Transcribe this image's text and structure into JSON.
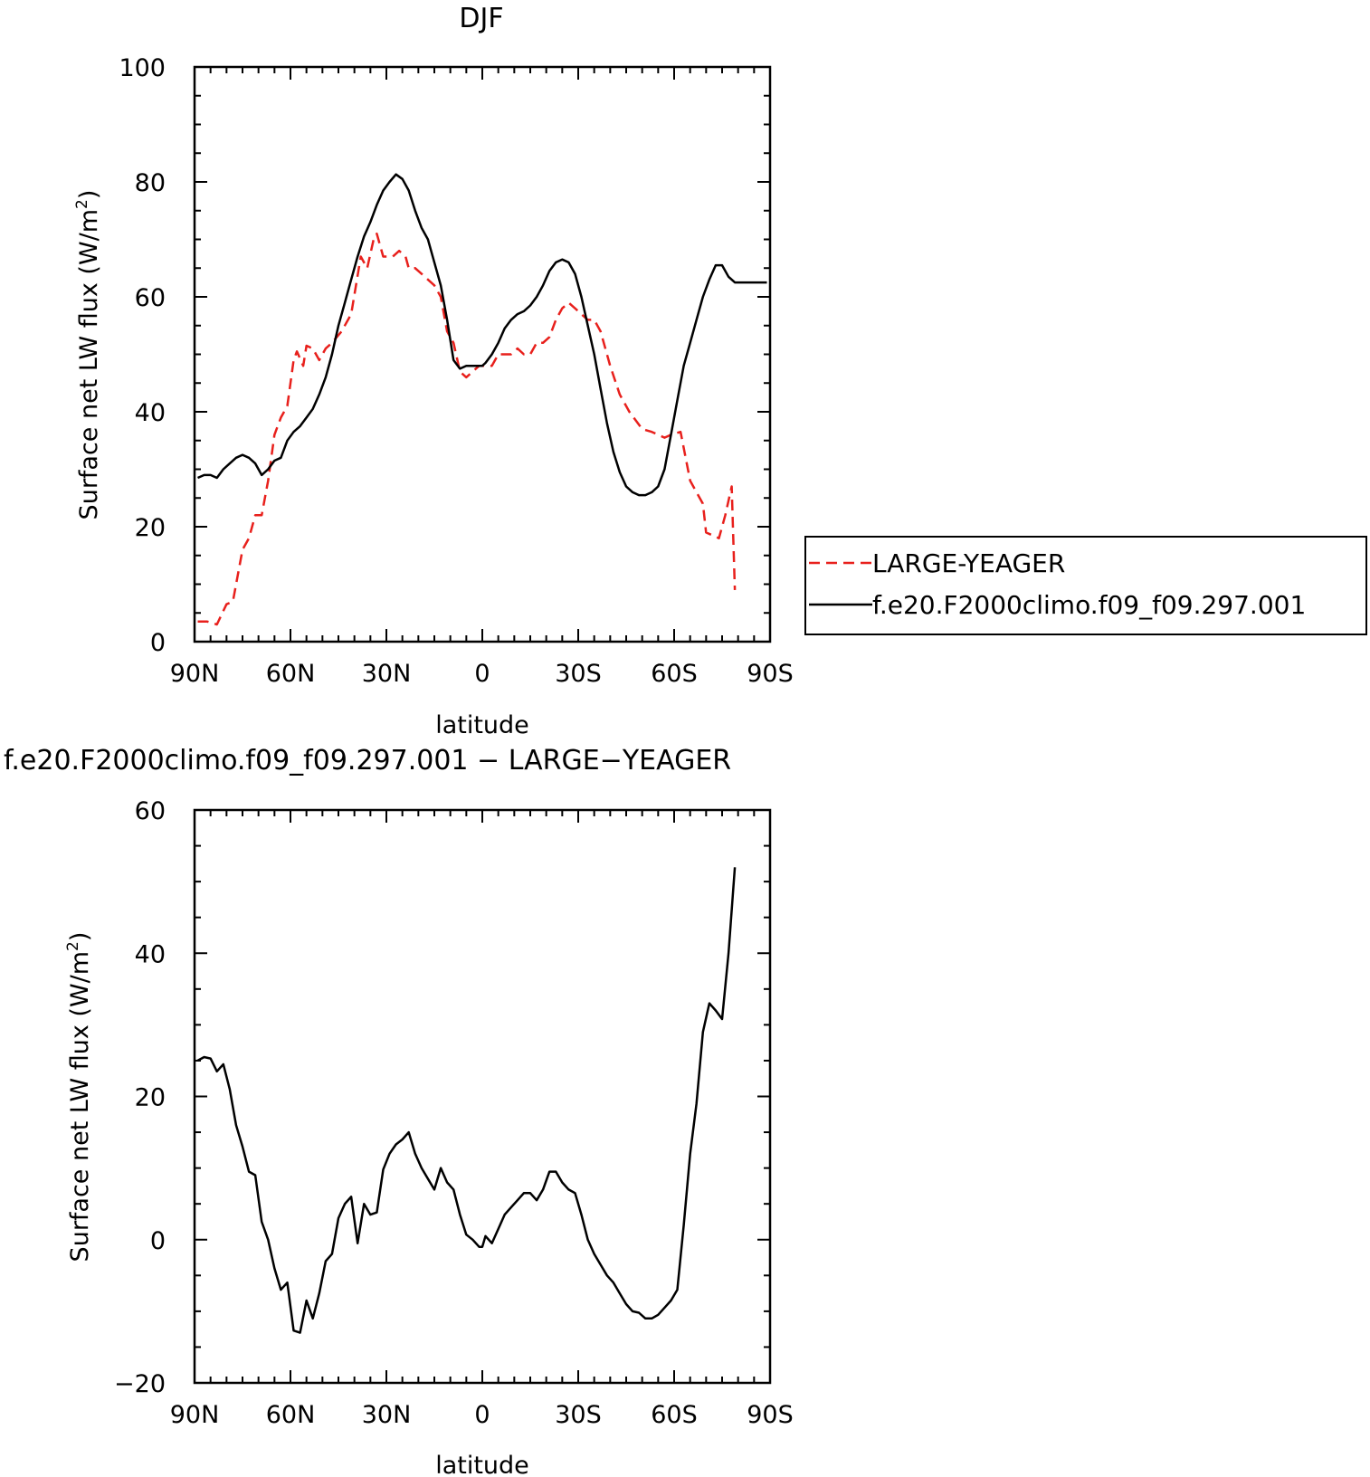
{
  "chart_data": [
    {
      "type": "line",
      "title": "DJF",
      "xlabel": "latitude",
      "ylabel_main": "Surface net LW flux (W/m",
      "ylabel_sup": "2",
      "ylabel_close": ")",
      "xlim": [
        90,
        -90
      ],
      "ylim": [
        0,
        100
      ],
      "x_ticks": [
        90,
        60,
        30,
        0,
        -30,
        -60,
        -90
      ],
      "x_tick_labels": [
        "90N",
        "60N",
        "30N",
        "0",
        "30S",
        "60S",
        "90S"
      ],
      "y_ticks": [
        0,
        20,
        40,
        60,
        80,
        100
      ],
      "y_tick_labels": [
        "0",
        "20",
        "40",
        "60",
        "80",
        "100"
      ],
      "legend_position": "right",
      "series": [
        {
          "name": "LARGE-YEAGER",
          "color": "#e8201c",
          "dash": "dashed",
          "x": [
            89,
            86,
            83,
            80,
            78,
            75,
            73,
            71,
            69,
            67,
            65,
            63,
            61,
            59,
            58,
            56,
            55,
            53,
            51,
            49,
            47,
            44,
            41,
            38,
            36,
            34,
            33,
            31,
            29,
            28,
            26,
            24,
            23,
            21,
            19,
            17,
            15,
            13,
            11,
            9,
            7,
            5,
            3,
            1,
            0,
            -1,
            -3,
            -5,
            -7,
            -9,
            -11,
            -13,
            -15,
            -17,
            -19,
            -21,
            -23,
            -25,
            -27,
            -29,
            -31,
            -33,
            -35,
            -37,
            -40,
            -43,
            -46,
            -50,
            -53,
            -55,
            -57,
            -59,
            -62,
            -65,
            -67,
            -69,
            -70,
            -72,
            -74,
            -76,
            -78,
            -79
          ],
          "y": [
            3.5,
            3.5,
            3,
            6.5,
            7,
            16,
            18,
            22,
            22,
            28,
            36,
            39,
            41,
            49,
            50.5,
            48,
            51.5,
            51,
            49,
            51,
            52,
            54,
            57,
            67,
            65,
            70,
            71,
            67,
            67,
            67,
            68,
            67,
            65,
            65,
            64,
            63,
            62,
            60,
            54,
            52,
            47,
            46,
            47,
            48,
            48,
            48,
            48,
            50,
            50,
            50,
            51,
            50,
            50,
            52,
            52,
            53,
            56,
            58,
            59,
            58,
            57,
            56,
            56,
            54,
            48,
            43,
            40,
            37,
            36.5,
            36,
            35.5,
            36,
            36.5,
            28,
            26,
            24,
            19,
            18.5,
            18,
            22,
            27,
            9
          ]
        },
        {
          "name": "f.e20.F2000climo.f09_f09.297.001",
          "color": "#000000",
          "dash": "solid",
          "x": [
            89,
            87,
            85,
            83,
            81,
            79,
            77,
            75,
            73,
            71,
            69,
            67,
            65,
            63,
            61,
            59,
            57,
            55,
            53,
            51,
            49,
            47,
            45,
            43,
            41,
            39,
            37,
            35,
            33,
            31,
            29,
            27,
            25,
            23,
            21,
            19,
            17,
            15,
            13,
            11,
            9,
            7,
            5,
            3,
            1,
            0,
            -1,
            -3,
            -5,
            -7,
            -9,
            -11,
            -13,
            -15,
            -17,
            -19,
            -21,
            -23,
            -25,
            -27,
            -29,
            -31,
            -33,
            -35,
            -37,
            -39,
            -41,
            -43,
            -45,
            -47,
            -49,
            -51,
            -53,
            -55,
            -57,
            -59,
            -61,
            -63,
            -65,
            -67,
            -69,
            -71,
            -73,
            -75,
            -77,
            -79,
            -81,
            -83,
            -85,
            -87,
            -89
          ],
          "y": [
            28.5,
            29,
            29,
            28.5,
            30,
            31,
            32,
            32.5,
            32,
            31,
            29,
            30,
            31.5,
            32,
            35,
            36.5,
            37.5,
            39,
            40.5,
            43,
            46,
            50,
            55,
            59,
            63,
            67,
            70.5,
            73,
            76,
            78.5,
            80,
            81.3,
            80.5,
            78.5,
            75,
            72,
            70,
            66,
            62,
            56,
            49,
            47.5,
            48,
            48,
            48,
            48,
            48.5,
            50,
            52,
            54.5,
            56,
            57,
            57.5,
            58.5,
            60,
            62,
            64.5,
            66,
            66.5,
            66,
            64,
            60,
            55,
            50,
            44,
            38,
            33,
            29.5,
            27,
            26,
            25.5,
            25.5,
            26,
            27,
            30,
            36,
            42,
            48,
            52,
            56,
            60,
            63,
            65.5,
            65.5,
            63.5,
            62.5,
            62.5,
            62.5,
            62.5,
            62.5,
            62.5
          ]
        }
      ]
    },
    {
      "type": "line",
      "title": "f.e20.F2000climo.f09_f09.297.001  −  LARGE−YEAGER",
      "xlabel": "latitude",
      "ylabel_main": "Surface net LW flux (W/m",
      "ylabel_sup": "2",
      "ylabel_close": ")",
      "xlim": [
        90,
        -90
      ],
      "ylim": [
        -20,
        60
      ],
      "x_ticks": [
        90,
        60,
        30,
        0,
        -30,
        -60,
        -90
      ],
      "x_tick_labels": [
        "90N",
        "60N",
        "30N",
        "0",
        "30S",
        "60S",
        "90S"
      ],
      "y_ticks": [
        -20,
        0,
        20,
        40,
        60
      ],
      "y_tick_labels": [
        "−20",
        "0",
        "20",
        "40",
        "60"
      ],
      "series": [
        {
          "color": "#000000",
          "dash": "solid",
          "x": [
            89,
            87,
            85,
            83,
            81,
            79,
            77,
            75,
            73,
            71,
            69,
            67,
            65,
            63,
            61,
            59,
            57,
            55,
            53,
            51,
            49,
            47,
            45,
            43,
            41,
            39,
            37,
            35,
            33,
            31,
            29,
            27,
            25,
            23,
            21,
            19,
            17,
            15,
            13,
            11,
            9,
            7,
            5,
            3,
            1,
            0,
            -1,
            -3,
            -5,
            -7,
            -9,
            -11,
            -13,
            -15,
            -17,
            -19,
            -21,
            -23,
            -25,
            -27,
            -29,
            -31,
            -33,
            -35,
            -37,
            -39,
            -41,
            -43,
            -45,
            -47,
            -49,
            -51,
            -53,
            -55,
            -57,
            -59,
            -61,
            -63,
            -65,
            -67,
            -69,
            -71,
            -73,
            -75,
            -77,
            -79
          ],
          "y": [
            25,
            25.5,
            25.3,
            23.5,
            24.5,
            21,
            16,
            13,
            9.5,
            9,
            2.5,
            0,
            -4,
            -7,
            -6,
            -12.7,
            -13,
            -8.5,
            -11,
            -7.5,
            -3,
            -2,
            3,
            5,
            6,
            -0.5,
            5,
            3.5,
            3.8,
            9.8,
            12,
            13.3,
            14,
            15,
            12,
            10,
            8.5,
            7,
            10,
            8,
            7,
            3.5,
            0.7,
            0,
            -1,
            -1,
            0.5,
            -0.5,
            1.5,
            3.5,
            4.5,
            5.5,
            6.5,
            6.5,
            5.5,
            7,
            9.5,
            9.5,
            8,
            7,
            6.5,
            3.5,
            0,
            -2,
            -3.5,
            -5,
            -6,
            -7.5,
            -9,
            -10,
            -10.2,
            -11,
            -11,
            -10.5,
            -9.5,
            -8.5,
            -7,
            2,
            12,
            19,
            29,
            33,
            32,
            30.8,
            40,
            52
          ]
        }
      ]
    }
  ]
}
